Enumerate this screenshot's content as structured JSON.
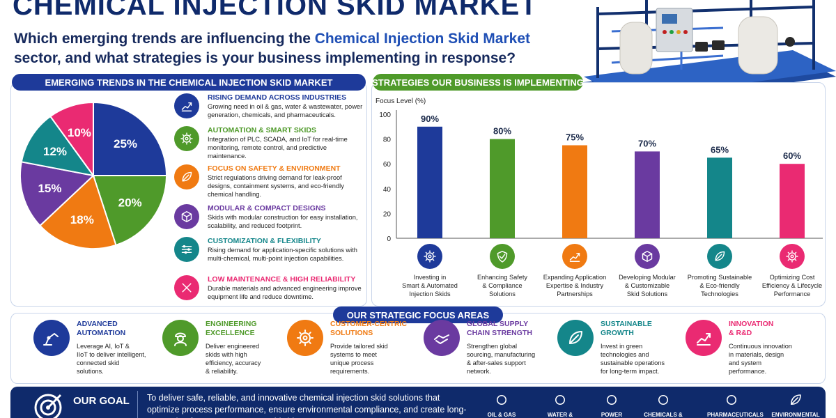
{
  "header": {
    "title": "CHEMICAL INJECTION SKID MARKET",
    "question_part1": "Which emerging trends are influencing the ",
    "question_highlight": "Chemical Injection Skid Market",
    "question_part2": " sector, and what strategies is your business implementing in response?"
  },
  "trends_panel": {
    "heading": "EMERGING TRENDS IN THE CHEMICAL INJECTION SKID MARKET",
    "pie": {
      "type": "pie",
      "slices": [
        {
          "value": 25,
          "label": "25%",
          "color": "#1e3a9a"
        },
        {
          "value": 20,
          "label": "20%",
          "color": "#4f9a2a"
        },
        {
          "value": 18,
          "label": "18%",
          "color": "#f07a12"
        },
        {
          "value": 15,
          "label": "15%",
          "color": "#6a3aa0"
        },
        {
          "value": 12,
          "label": "12%",
          "color": "#14868a"
        },
        {
          "value": 10,
          "label": "10%",
          "color": "#ea2a72"
        }
      ]
    },
    "items": [
      {
        "title": "RISING DEMAND ACROSS INDUSTRIES",
        "desc": "Growing need in oil & gas, water & wastewater, power generation, chemicals, and pharmaceuticals.",
        "color": "#1e3a9a",
        "icon": "chart-growth-icon"
      },
      {
        "title": "AUTOMATION & SMART SKIDS",
        "desc": "Integration of PLC, SCADA, and IoT for real-time monitoring, remote control, and predictive maintenance.",
        "color": "#4f9a2a",
        "icon": "gear-chip-icon"
      },
      {
        "title": "FOCUS ON SAFETY & ENVIRONMENT",
        "desc": "Strict regulations driving demand for leak-proof designs, containment systems, and eco-friendly chemical handling.",
        "color": "#f07a12",
        "icon": "leaf-icon"
      },
      {
        "title": "MODULAR & COMPACT DESIGNS",
        "desc": "Skids with modular construction for easy installation, scalability, and reduced footprint.",
        "color": "#6a3aa0",
        "icon": "cube-icon"
      },
      {
        "title": "CUSTOMIZATION & FLEXIBILITY",
        "desc": "Rising demand for application-specific solutions with multi-chemical, multi-point injection capabilities.",
        "color": "#14868a",
        "icon": "sliders-icon"
      },
      {
        "title": "LOW MAINTENANCE & HIGH RELIABILITY",
        "desc": "Durable materials and advanced engineering improve equipment life and reduce downtime.",
        "color": "#ea2a72",
        "icon": "tools-icon"
      }
    ]
  },
  "strategies_panel": {
    "heading": "STRATEGIES OUR BUSINESS IS IMPLEMENTING"
  },
  "chart_data": {
    "type": "bar",
    "ylabel": "Focus Level (%)",
    "ylim": [
      0,
      100
    ],
    "yticks": [
      "0",
      "20",
      "40",
      "60",
      "80",
      "100"
    ],
    "categories": [
      "Investing in Smart & Automated Injection Skids",
      "Enhancing Safety & Compliance Solutions",
      "Expanding Application Expertise & Industry Partnerships",
      "Developing Modular & Customizable Skid Solutions",
      "Promoting Sustainable & Eco-friendly Technologies",
      "Optimizing Cost Efficiency & Lifecycle Performance"
    ],
    "category_lines": [
      [
        "Investing in",
        "Smart & Automated",
        "Injection Skids"
      ],
      [
        "Enhancing Safety",
        "& Compliance",
        "Solutions"
      ],
      [
        "Expanding Application",
        "Expertise & Industry",
        "Partnerships"
      ],
      [
        "Developing Modular",
        "& Customizable",
        "Skid Solutions"
      ],
      [
        "Promoting Sustainable",
        "& Eco-friendly",
        "Technologies"
      ],
      [
        "Optimizing Cost",
        "Efficiency & Lifecycle",
        "Performance"
      ]
    ],
    "values": [
      90,
      80,
      75,
      70,
      65,
      60
    ],
    "value_labels": [
      "90%",
      "80%",
      "75%",
      "70%",
      "65%",
      "60%"
    ],
    "colors": [
      "#1e3a9a",
      "#4f9a2a",
      "#f07a12",
      "#6a3aa0",
      "#14868a",
      "#ea2a72"
    ],
    "icons": [
      "gear-icon",
      "shield-check-icon",
      "growth-chart-icon",
      "cube-icon",
      "plant-hand-icon",
      "cost-cycle-icon"
    ],
    "grid": false
  },
  "focus_panel": {
    "heading": "OUR STRATEGIC FOCUS AREAS",
    "items": [
      {
        "title_lines": [
          "ADVANCED",
          "AUTOMATION"
        ],
        "desc_lines": [
          "Leverage AI, IoT &",
          "IIoT to deliver intelligent,",
          "connected skid",
          "solutions."
        ],
        "color": "#1e3a9a",
        "icon": "robot-arm-icon"
      },
      {
        "title_lines": [
          "ENGINEERING",
          "EXCELLENCE"
        ],
        "desc_lines": [
          "Deliver engineered",
          "skids with high",
          "efficiency, accuracy",
          "& reliability."
        ],
        "color": "#4f9a2a",
        "icon": "engineer-icon"
      },
      {
        "title_lines": [
          "CUSTOMER-CENTRIC",
          "SOLUTIONS"
        ],
        "desc_lines": [
          "Provide tailored skid",
          "systems to meet",
          "unique process",
          "requirements."
        ],
        "color": "#f07a12",
        "icon": "gear-icon"
      },
      {
        "title_lines": [
          "GLOBAL SUPPLY",
          "CHAIN STRENGTH"
        ],
        "desc_lines": [
          "Strengthen global",
          "sourcing, manufacturing",
          "& after-sales support",
          "network."
        ],
        "color": "#6a3aa0",
        "icon": "handshake-icon"
      },
      {
        "title_lines": [
          "SUSTAINABLE",
          "GROWTH"
        ],
        "desc_lines": [
          "Invest in green",
          "technologies and",
          "sustainable operations",
          "for long-term impact."
        ],
        "color": "#14868a",
        "icon": "globe-leaf-icon"
      },
      {
        "title_lines": [
          "INNOVATION",
          "& R&D"
        ],
        "desc_lines": [
          "Continuous innovation",
          "in materials, design",
          "and system",
          "performance."
        ],
        "color": "#ea2a72",
        "icon": "growth-chart-icon"
      }
    ]
  },
  "goal": {
    "title": "OUR GOAL",
    "text": "To deliver safe, reliable, and innovative chemical injection skid solutions that optimize process performance, ensure environmental compliance, and create long-term value for our customers worldwide.",
    "industries": [
      {
        "label": "OIL & GAS",
        "icon": "oil-rig-icon"
      },
      {
        "label": "WATER &",
        "icon": "water-drop-icon"
      },
      {
        "label": "POWER",
        "icon": "factory-icon"
      },
      {
        "label": "CHEMICALS &",
        "icon": "flask-icon"
      },
      {
        "label": "PHARMACEUTICALS",
        "icon": "capsule-icon"
      },
      {
        "label": "ENVIRONMENTAL",
        "icon": "hand-leaf-icon"
      }
    ]
  }
}
